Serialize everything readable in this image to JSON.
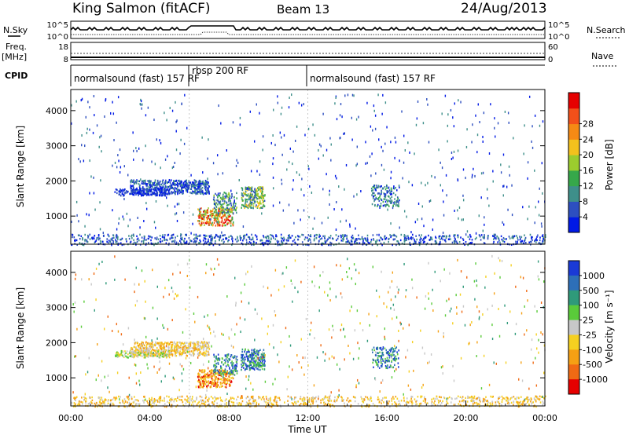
{
  "header": {
    "station": "King Salmon (fitACF)",
    "beam": "Beam 13",
    "date": "24/Aug/2013"
  },
  "side_labels": {
    "nsky": "N.Sky",
    "freq": "Freq.",
    "freq_unit": "[MHz]",
    "cpid": "CPID",
    "nsearch": "N.Search",
    "nave": "Nave"
  },
  "cpid_segments": [
    {
      "label": "normalsound (fast) 157 RF",
      "start": 0.0
    },
    {
      "label": "rbsp 200 RF",
      "start": 6.0
    },
    {
      "label": "normalsound (fast) 157 RF",
      "start": 12.0
    }
  ],
  "chart_data": [
    {
      "type": "line",
      "name": "noise",
      "left_ticks": [
        "10^5",
        "10^0"
      ],
      "right_ticks": [
        "10^5",
        "10^0"
      ]
    },
    {
      "type": "line",
      "name": "frequency",
      "left_ticks": [
        "18",
        "8"
      ],
      "right_ticks": [
        "60",
        "0"
      ]
    },
    {
      "type": "heatmap",
      "name": "power",
      "ylabel": "Slant Range [km]",
      "xlim": [
        0,
        24
      ],
      "ylim": [
        200,
        4600
      ],
      "yticks": [
        1000,
        2000,
        3000,
        4000
      ],
      "colorbar": {
        "label": "Power [dB]",
        "ticks": [
          4,
          8,
          12,
          16,
          20,
          24,
          28
        ],
        "colors": [
          "#0019e6",
          "#2d4fc0",
          "#3e8f8a",
          "#36a84a",
          "#9ccc2e",
          "#f3c11d",
          "#f58a14",
          "#f2501a",
          "#e60000"
        ]
      }
    },
    {
      "type": "heatmap",
      "name": "velocity",
      "ylabel": "Slant Range [km]",
      "xlabel": "Time UT",
      "xlim": [
        0,
        24
      ],
      "ylim": [
        200,
        4600
      ],
      "yticks": [
        1000,
        2000,
        3000,
        4000
      ],
      "xticks": [
        "00:00",
        "04:00",
        "08:00",
        "12:00",
        "16:00",
        "20:00",
        "00:00"
      ],
      "colorbar": {
        "label": "Velocity [m s⁻¹]",
        "ticks": [
          "1000",
          "500",
          "100",
          "25",
          "-25",
          "-100",
          "-500",
          "-1000"
        ],
        "colors": [
          "#1a3ad6",
          "#2d6fb8",
          "#2f9a7a",
          "#5acb3a",
          "#c8c8c8",
          "#f5d020",
          "#f5a014",
          "#f06a14",
          "#e60000"
        ]
      }
    }
  ]
}
